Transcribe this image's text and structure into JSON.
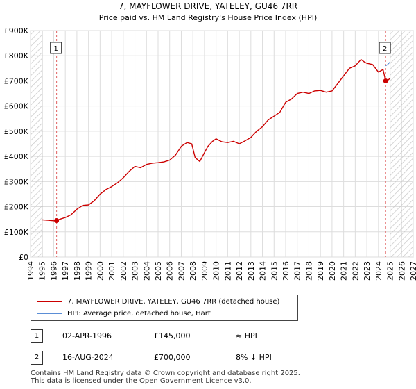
{
  "chart_data": {
    "type": "line",
    "title": "7, MAYFLOWER DRIVE, YATELEY, GU46 7RR",
    "subtitle": "Price paid vs. HM Land Registry's House Price Index (HPI)",
    "xlim": [
      1994,
      2027
    ],
    "ylim": [
      0,
      900000
    ],
    "x_ticks": [
      "1994",
      "1995",
      "1996",
      "1997",
      "1998",
      "1999",
      "2000",
      "2001",
      "2002",
      "2003",
      "2004",
      "2005",
      "2006",
      "2007",
      "2008",
      "2009",
      "2010",
      "2011",
      "2012",
      "2013",
      "2014",
      "2015",
      "2016",
      "2017",
      "2018",
      "2019",
      "2020",
      "2021",
      "2022",
      "2023",
      "2024",
      "2025",
      "2026",
      "2027"
    ],
    "y_ticks": [
      0,
      100000,
      200000,
      300000,
      400000,
      500000,
      600000,
      700000,
      800000,
      900000
    ],
    "y_tick_labels": [
      "£0",
      "£100K",
      "£200K",
      "£300K",
      "£400K",
      "£500K",
      "£600K",
      "£700K",
      "£800K",
      "£900K"
    ],
    "grid": true,
    "data_range": [
      1995.0,
      2025.0
    ],
    "series": [
      {
        "name": "7, MAYFLOWER DRIVE, YATELEY, GU46 7RR (detached house)",
        "color": "#cc0000",
        "x": [
          1995.0,
          1995.5,
          1996.0,
          1996.25,
          1996.5,
          1997.0,
          1997.5,
          1998.0,
          1998.5,
          1999.0,
          1999.5,
          2000.0,
          2000.5,
          2001.0,
          2001.5,
          2002.0,
          2002.5,
          2003.0,
          2003.5,
          2004.0,
          2004.5,
          2005.0,
          2005.5,
          2006.0,
          2006.5,
          2007.0,
          2007.5,
          2007.9,
          2008.2,
          2008.6,
          2009.0,
          2009.3,
          2009.7,
          2010.0,
          2010.5,
          2011.0,
          2011.5,
          2012.0,
          2012.5,
          2013.0,
          2013.5,
          2014.0,
          2014.5,
          2015.0,
          2015.5,
          2016.0,
          2016.5,
          2017.0,
          2017.5,
          2018.0,
          2018.5,
          2019.0,
          2019.5,
          2020.0,
          2020.5,
          2021.0,
          2021.5,
          2022.0,
          2022.5,
          2022.8,
          2023.0,
          2023.5,
          2024.0,
          2024.4,
          2024.62,
          2024.8,
          2025.0
        ],
        "values": [
          148000,
          146000,
          144000,
          145000,
          150000,
          157000,
          168000,
          190000,
          205000,
          207000,
          224000,
          250000,
          268000,
          280000,
          295000,
          315000,
          340000,
          360000,
          355000,
          368000,
          373000,
          375000,
          378000,
          385000,
          405000,
          440000,
          455000,
          450000,
          395000,
          380000,
          415000,
          440000,
          460000,
          470000,
          458000,
          455000,
          460000,
          450000,
          462000,
          475000,
          500000,
          518000,
          545000,
          560000,
          575000,
          615000,
          628000,
          650000,
          655000,
          650000,
          660000,
          662000,
          655000,
          660000,
          690000,
          720000,
          750000,
          760000,
          785000,
          775000,
          770000,
          765000,
          735000,
          745000,
          700000,
          702000,
          710000
        ]
      },
      {
        "name": "HPI: Average price, detached house, Hart",
        "color": "#5b8ed6",
        "x": [
          2024.62,
          2024.8,
          2025.0
        ],
        "values": [
          760000,
          765000,
          775000
        ]
      }
    ],
    "markers": [
      {
        "label": "1",
        "x": 1996.25,
        "value": 145000
      },
      {
        "label": "2",
        "x": 2024.62,
        "value": 700000
      }
    ]
  },
  "legend": {
    "property_label": "7, MAYFLOWER DRIVE, YATELEY, GU46 7RR (detached house)",
    "hpi_label": "HPI: Average price, detached house, Hart"
  },
  "transactions": [
    {
      "num": "1",
      "date": "02-APR-1996",
      "price": "£145,000",
      "hpi": "≈ HPI"
    },
    {
      "num": "2",
      "date": "16-AUG-2024",
      "price": "£700,000",
      "hpi": "8% ↓ HPI"
    }
  ],
  "footer": {
    "line1": "Contains HM Land Registry data © Crown copyright and database right 2025.",
    "line2": "This data is licensed under the Open Government Licence v3.0."
  },
  "colors": {
    "property_line": "#cc0000",
    "hpi_line": "#5b8ed6",
    "marker_line": "#e06060",
    "hatch": "#b0b0b0"
  }
}
